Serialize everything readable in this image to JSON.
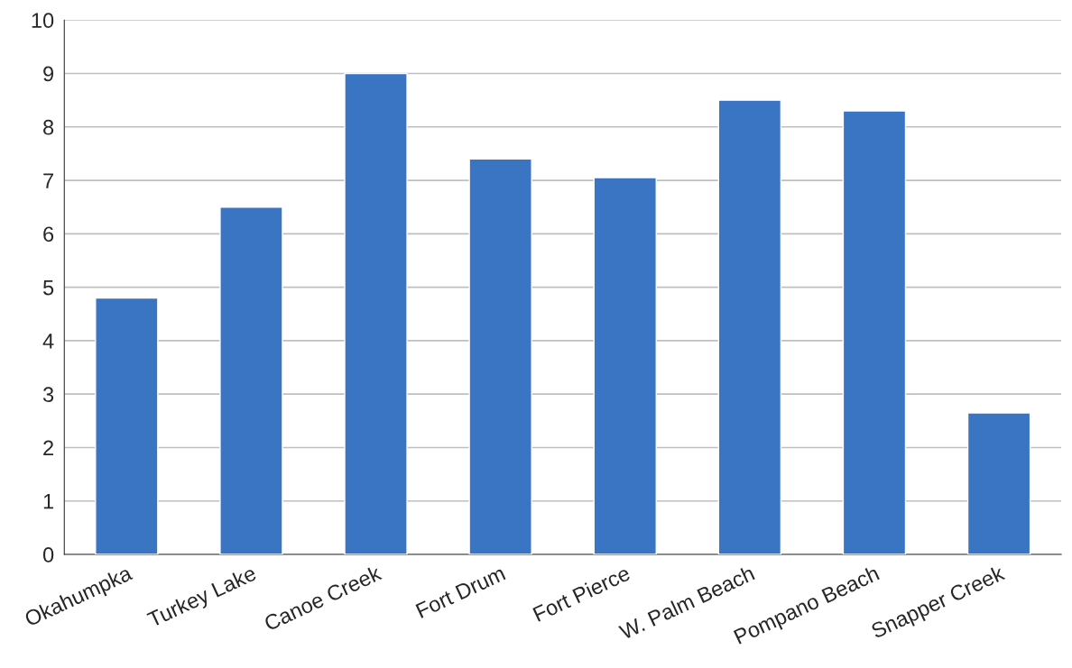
{
  "chart_data": {
    "type": "bar",
    "categories": [
      "Okahumpka",
      "Turkey Lake",
      "Canoe Creek",
      "Fort Drum",
      "Fort Pierce",
      "W. Palm Beach",
      "Pompano Beach",
      "Snapper Creek"
    ],
    "values": [
      4.8,
      6.5,
      9.0,
      7.4,
      7.05,
      8.5,
      8.3,
      2.65
    ],
    "color": "#3a75c4",
    "ylim": [
      0,
      10
    ],
    "yticks": [
      0,
      1,
      2,
      3,
      4,
      5,
      6,
      7,
      8,
      9,
      10
    ],
    "grid": "y",
    "legend": false
  }
}
